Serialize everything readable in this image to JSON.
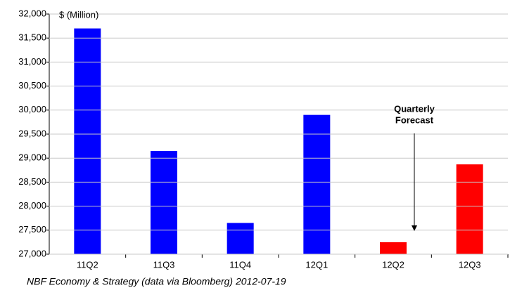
{
  "chart_data": {
    "type": "bar",
    "y_axis_label": "$ (Million)",
    "annotation": [
      "Quarterly",
      "Forecast"
    ],
    "source": "NBF Economy & Strategy (data via Bloomberg) 2012-07-19",
    "categories": [
      "11Q2",
      "11Q3",
      "11Q4",
      "12Q1",
      "12Q2",
      "12Q3"
    ],
    "values": [
      31700,
      29150,
      27650,
      29900,
      27250,
      28870
    ],
    "colors": [
      "#0000ff",
      "#0000ff",
      "#0000ff",
      "#0000ff",
      "#ff0000",
      "#ff0000"
    ],
    "ylim": [
      27000,
      32000
    ],
    "yticks": [
      {
        "value": 27000,
        "label": "27,000"
      },
      {
        "value": 27500,
        "label": "27,500"
      },
      {
        "value": 28000,
        "label": "28,000"
      },
      {
        "value": 28500,
        "label": "28,500"
      },
      {
        "value": 29000,
        "label": "29,000"
      },
      {
        "value": 29500,
        "label": "29,500"
      },
      {
        "value": 30000,
        "label": "30,000"
      },
      {
        "value": 30500,
        "label": "30,500"
      },
      {
        "value": 31000,
        "label": "31,000"
      },
      {
        "value": 31500,
        "label": "31,500"
      },
      {
        "value": 32000,
        "label": "32,000"
      }
    ],
    "grid": true
  }
}
